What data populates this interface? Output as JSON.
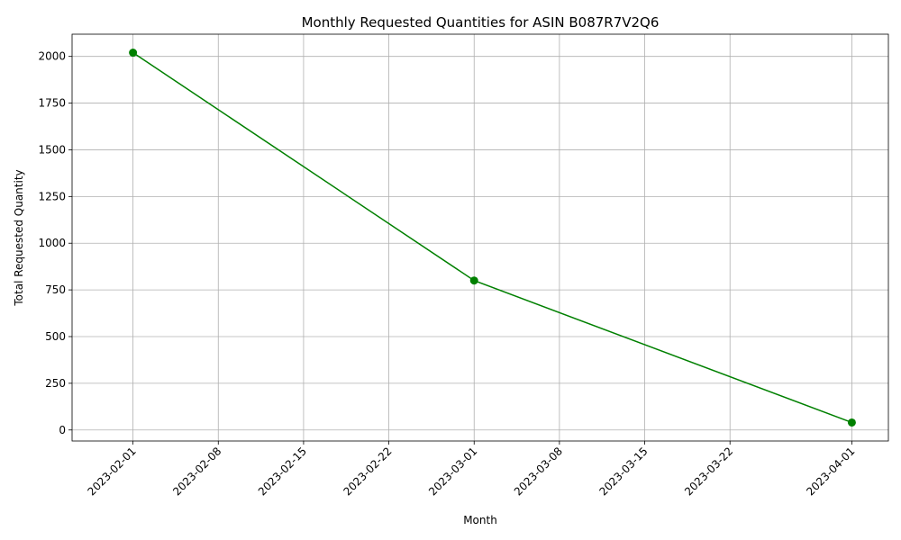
{
  "chart_data": {
    "type": "line",
    "title": "Monthly Requested Quantities for ASIN B087R7V2Q6",
    "xlabel": "Month",
    "ylabel": "Total Requested Quantity",
    "x_type": "date",
    "x": [
      "2023-02-01",
      "2023-03-01",
      "2023-04-01"
    ],
    "series": [
      {
        "values": [
          2020,
          800,
          40
        ],
        "color": "#008000",
        "marker": "circle"
      }
    ],
    "x_ticks": [
      "2023-02-01",
      "2023-02-08",
      "2023-02-15",
      "2023-02-22",
      "2023-03-01",
      "2023-03-08",
      "2023-03-15",
      "2023-03-22",
      "2023-04-01"
    ],
    "y_ticks": [
      0,
      250,
      500,
      750,
      1000,
      1250,
      1500,
      1750,
      2000
    ],
    "xlim": [
      "2023-01-27",
      "2023-04-04"
    ],
    "ylim": [
      -59,
      2119
    ],
    "grid": true,
    "x_tick_rotation": "45deg"
  }
}
